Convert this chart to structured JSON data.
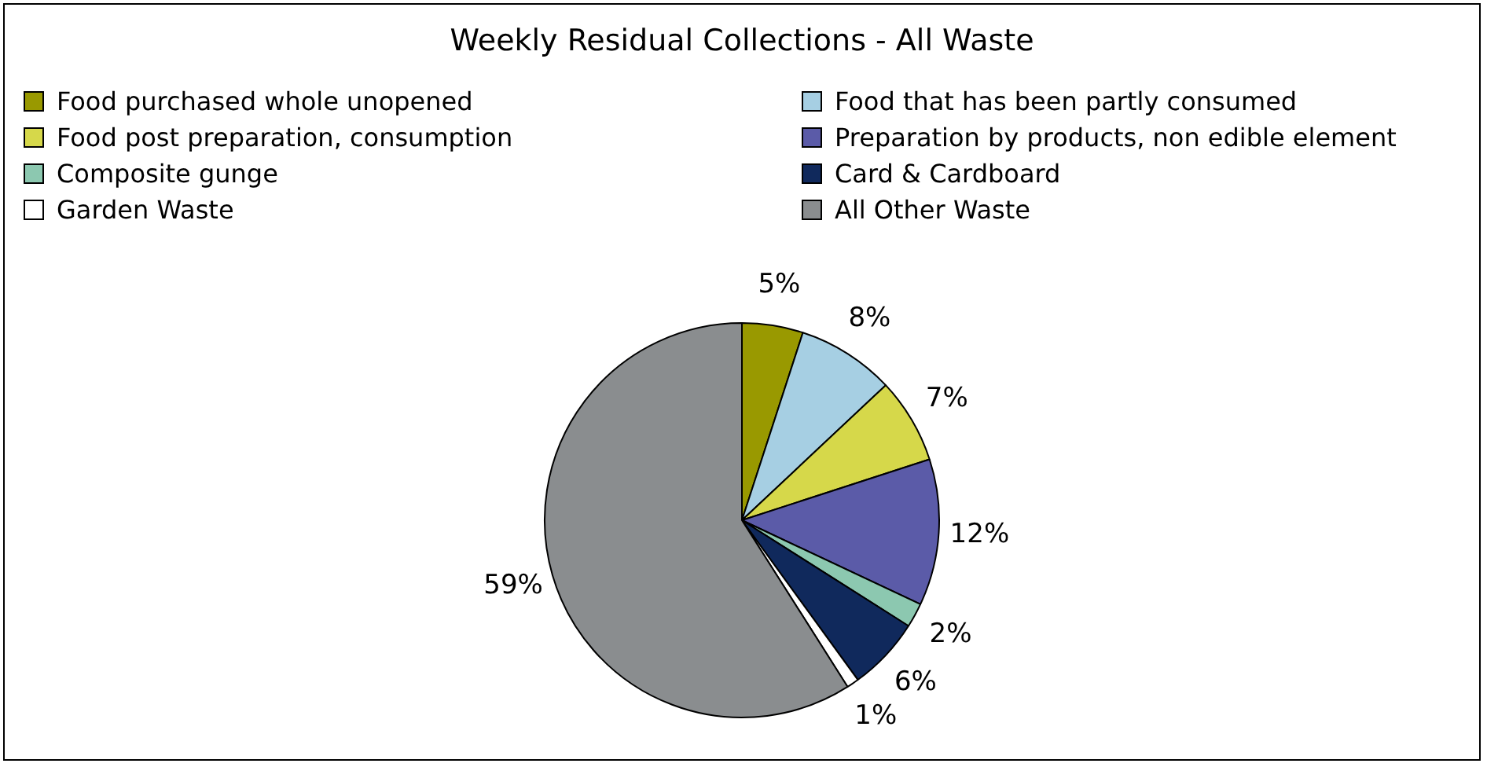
{
  "chart_data": {
    "type": "pie",
    "title": "Weekly Residual Collections - All Waste",
    "categories": [
      "Food purchased whole unopened",
      "Food that has been partly consumed",
      "Food post preparation, consumption",
      "Preparation by products, non edible element",
      "Composite gunge",
      "Card & Cardboard",
      "Garden Waste",
      "All Other Waste"
    ],
    "values": [
      5,
      8,
      7,
      12,
      2,
      6,
      1,
      59
    ],
    "value_labels": [
      "5%",
      "8%",
      "7%",
      "12%",
      "2%",
      "6%",
      "1%",
      "59%"
    ],
    "colors": [
      "#999900",
      "#a6cfe3",
      "#d6d84a",
      "#5b5ba8",
      "#8cc8b0",
      "#10295c",
      "#ffffff",
      "#8a8d8f"
    ],
    "legend": "top"
  }
}
